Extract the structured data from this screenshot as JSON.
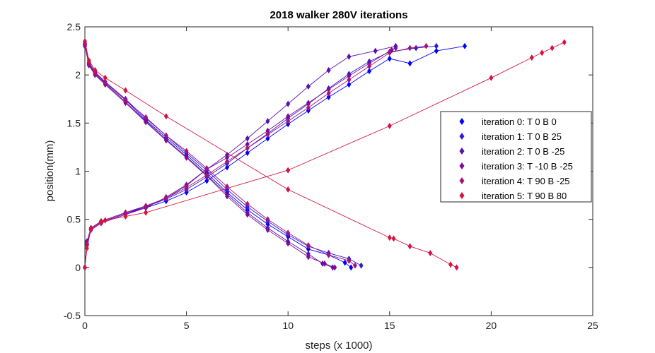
{
  "chart_data": {
    "type": "line",
    "title": "2018 walker 280V iterations",
    "xlabel": "steps (x 1000)",
    "ylabel": "position(mm)",
    "xlim": [
      0,
      25
    ],
    "ylim": [
      -0.5,
      2.5
    ],
    "xticks": [
      "0",
      "5",
      "10",
      "15",
      "20",
      "25"
    ],
    "yticks": [
      "-0.5",
      "0",
      "0.5",
      "1",
      "1.5",
      "2",
      "2.5"
    ],
    "grid": false,
    "legend_position": "right",
    "marker": "diamond",
    "series": [
      {
        "name": "iteration 0: T 0 B 0",
        "color": "#0000ff",
        "down": [
          [
            0.0,
            2.32
          ],
          [
            0.2,
            2.12
          ],
          [
            0.5,
            2.02
          ],
          [
            1,
            1.92
          ],
          [
            2,
            1.74
          ],
          [
            3,
            1.53
          ],
          [
            4,
            1.35
          ],
          [
            5,
            1.17
          ],
          [
            6,
            0.98
          ],
          [
            7,
            0.78
          ],
          [
            8,
            0.6
          ],
          [
            9,
            0.45
          ],
          [
            10,
            0.32
          ],
          [
            11,
            0.19
          ],
          [
            12,
            0.13
          ],
          [
            12.8,
            0.05
          ],
          [
            13.1,
            0.0
          ]
        ],
        "up": [
          [
            0.0,
            0.0
          ],
          [
            0.1,
            0.25
          ],
          [
            0.3,
            0.4
          ],
          [
            0.8,
            0.47
          ],
          [
            2,
            0.56
          ],
          [
            3,
            0.62
          ],
          [
            4,
            0.69
          ],
          [
            5,
            0.78
          ],
          [
            6,
            0.9
          ],
          [
            7,
            1.04
          ],
          [
            8,
            1.19
          ],
          [
            9,
            1.34
          ],
          [
            10,
            1.49
          ],
          [
            11,
            1.63
          ],
          [
            12,
            1.77
          ],
          [
            13,
            1.9
          ],
          [
            14,
            2.04
          ],
          [
            15,
            2.17
          ],
          [
            16,
            2.12
          ],
          [
            17.3,
            2.25
          ],
          [
            18.7,
            2.3
          ]
        ]
      },
      {
        "name": "iteration 1: T 0 B 25",
        "color": "#2f1bd4",
        "down": [
          [
            0.0,
            2.33
          ],
          [
            0.2,
            2.13
          ],
          [
            0.5,
            2.03
          ],
          [
            1,
            1.93
          ],
          [
            2,
            1.75
          ],
          [
            3,
            1.55
          ],
          [
            4,
            1.37
          ],
          [
            5,
            1.19
          ],
          [
            6,
            1.01
          ],
          [
            7,
            0.81
          ],
          [
            8,
            0.63
          ],
          [
            9,
            0.48
          ],
          [
            10,
            0.34
          ],
          [
            11,
            0.22
          ],
          [
            12,
            0.15
          ],
          [
            13,
            0.09
          ],
          [
            13.6,
            0.02
          ]
        ],
        "up": [
          [
            0.0,
            0.0
          ],
          [
            0.1,
            0.27
          ],
          [
            0.3,
            0.41
          ],
          [
            0.8,
            0.48
          ],
          [
            2,
            0.57
          ],
          [
            3,
            0.63
          ],
          [
            4,
            0.71
          ],
          [
            5,
            0.81
          ],
          [
            6,
            0.94
          ],
          [
            7,
            1.08
          ],
          [
            8,
            1.24
          ],
          [
            9,
            1.39
          ],
          [
            10,
            1.55
          ],
          [
            11,
            1.7
          ],
          [
            12,
            1.86
          ],
          [
            13,
            2.01
          ],
          [
            14,
            2.14
          ],
          [
            15,
            2.24
          ],
          [
            16.3,
            2.28
          ],
          [
            17.3,
            2.3
          ]
        ]
      },
      {
        "name": "iteration 2: T 0 B -25",
        "color": "#5a0fae",
        "down": [
          [
            0.0,
            2.31
          ],
          [
            0.2,
            2.11
          ],
          [
            0.5,
            2.01
          ],
          [
            1,
            1.91
          ],
          [
            2,
            1.72
          ],
          [
            3,
            1.52
          ],
          [
            4,
            1.33
          ],
          [
            5,
            1.15
          ],
          [
            6,
            0.96
          ],
          [
            7,
            0.76
          ],
          [
            8,
            0.57
          ],
          [
            9,
            0.41
          ],
          [
            10,
            0.27
          ],
          [
            11,
            0.14
          ],
          [
            11.7,
            0.04
          ],
          [
            12.2,
            0.0
          ]
        ],
        "up": [
          [
            0.0,
            0.0
          ],
          [
            0.1,
            0.24
          ],
          [
            0.3,
            0.4
          ],
          [
            0.8,
            0.47
          ],
          [
            2,
            0.56
          ],
          [
            3,
            0.63
          ],
          [
            4,
            0.72
          ],
          [
            5,
            0.85
          ],
          [
            6,
            1.02
          ],
          [
            7,
            1.17
          ],
          [
            8,
            1.34
          ],
          [
            9,
            1.52
          ],
          [
            10,
            1.7
          ],
          [
            11,
            1.88
          ],
          [
            12,
            2.05
          ],
          [
            13,
            2.19
          ],
          [
            14.3,
            2.25
          ],
          [
            15.3,
            2.3
          ]
        ]
      },
      {
        "name": "iteration 3: T -10 B -25",
        "color": "#7c0d95",
        "down": [
          [
            0.0,
            2.3
          ],
          [
            0.2,
            2.1
          ],
          [
            0.5,
            2.0
          ],
          [
            1,
            1.9
          ],
          [
            2,
            1.71
          ],
          [
            3,
            1.51
          ],
          [
            4,
            1.32
          ],
          [
            5,
            1.14
          ],
          [
            6,
            0.95
          ],
          [
            7,
            0.74
          ],
          [
            8,
            0.55
          ],
          [
            9,
            0.39
          ],
          [
            10,
            0.25
          ],
          [
            11,
            0.11
          ],
          [
            11.8,
            0.04
          ],
          [
            12.3,
            0.0
          ]
        ],
        "up": [
          [
            0.0,
            0.0
          ],
          [
            0.1,
            0.23
          ],
          [
            0.3,
            0.39
          ],
          [
            0.8,
            0.46
          ],
          [
            2,
            0.55
          ],
          [
            3,
            0.62
          ],
          [
            4,
            0.73
          ],
          [
            5,
            0.86
          ],
          [
            6,
            1.02
          ],
          [
            7,
            1.14
          ],
          [
            8,
            1.28
          ],
          [
            9,
            1.42
          ],
          [
            10,
            1.57
          ],
          [
            11,
            1.71
          ],
          [
            12,
            1.85
          ],
          [
            13,
            1.99
          ],
          [
            14,
            2.12
          ],
          [
            15.1,
            2.26
          ],
          [
            15.3,
            2.28
          ]
        ]
      },
      {
        "name": "iteration 4: T 90 B -25",
        "color": "#a8137a",
        "down": [
          [
            0.0,
            2.32
          ],
          [
            0.2,
            2.12
          ],
          [
            0.5,
            2.02
          ],
          [
            1,
            1.92
          ],
          [
            2,
            1.74
          ],
          [
            3,
            1.56
          ],
          [
            4,
            1.37
          ],
          [
            5,
            1.21
          ],
          [
            6,
            1.03
          ],
          [
            7,
            0.84
          ],
          [
            8,
            0.66
          ],
          [
            9,
            0.5
          ],
          [
            10,
            0.36
          ],
          [
            11,
            0.23
          ],
          [
            12,
            0.13
          ],
          [
            13,
            0.07
          ],
          [
            13.3,
            0.02
          ]
        ],
        "up": [
          [
            0.0,
            0.0
          ],
          [
            0.1,
            0.25
          ],
          [
            0.3,
            0.41
          ],
          [
            0.8,
            0.48
          ],
          [
            2,
            0.57
          ],
          [
            3,
            0.64
          ],
          [
            4,
            0.72
          ],
          [
            5,
            0.83
          ],
          [
            6,
            0.96
          ],
          [
            7,
            1.1
          ],
          [
            8,
            1.24
          ],
          [
            9,
            1.38
          ],
          [
            10,
            1.52
          ],
          [
            11,
            1.66
          ],
          [
            12,
            1.81
          ],
          [
            13,
            1.95
          ],
          [
            14,
            2.09
          ],
          [
            15,
            2.23
          ],
          [
            16,
            2.28
          ],
          [
            16.8,
            2.3
          ]
        ]
      },
      {
        "name": "iteration 5: T 90 B 80",
        "color": "#d6133f",
        "down": [
          [
            0.0,
            2.35
          ],
          [
            0.2,
            2.15
          ],
          [
            0.5,
            2.05
          ],
          [
            1,
            1.97
          ],
          [
            2,
            1.84
          ],
          [
            4,
            1.57
          ],
          [
            10,
            0.81
          ],
          [
            15,
            0.31
          ],
          [
            15.2,
            0.3
          ],
          [
            16,
            0.22
          ],
          [
            17,
            0.15
          ],
          [
            18,
            0.03
          ],
          [
            18.3,
            0.0
          ]
        ],
        "up": [
          [
            0.0,
            0.0
          ],
          [
            0.1,
            0.2
          ],
          [
            0.3,
            0.4
          ],
          [
            0.8,
            0.47
          ],
          [
            1,
            0.49
          ],
          [
            2,
            0.53
          ],
          [
            3,
            0.57
          ],
          [
            10,
            1.01
          ],
          [
            15,
            1.47
          ],
          [
            20,
            1.97
          ],
          [
            22,
            2.18
          ],
          [
            22.5,
            2.23
          ],
          [
            23,
            2.28
          ],
          [
            23.6,
            2.34
          ]
        ]
      }
    ]
  }
}
